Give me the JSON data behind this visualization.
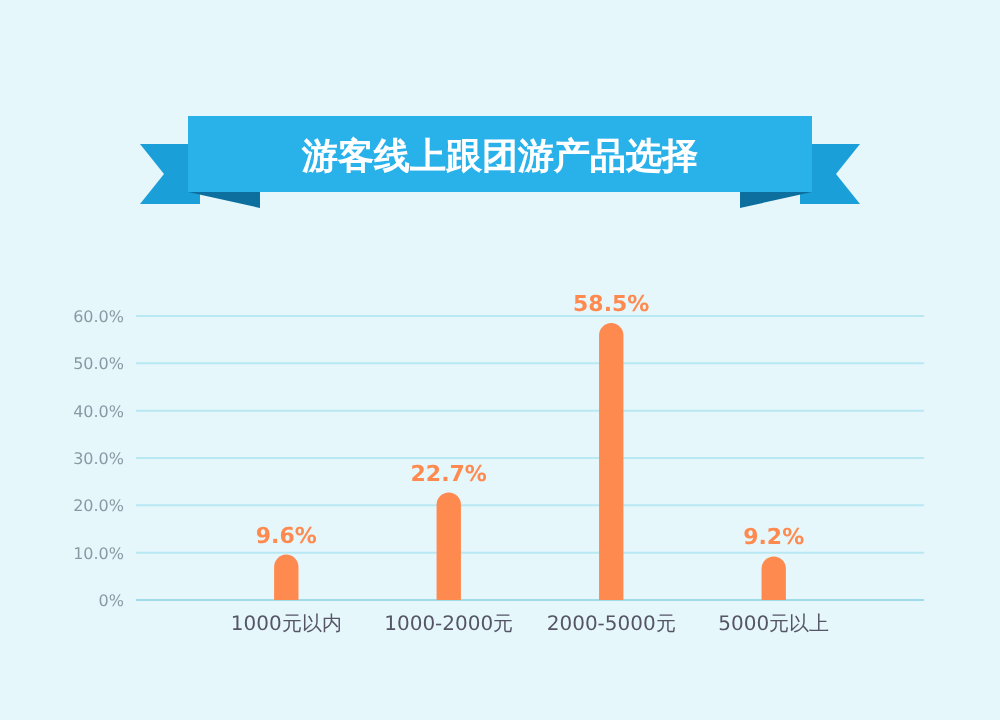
{
  "chart_data": {
    "type": "bar",
    "title": "游客线上跟团游产品选择",
    "categories": [
      "1000元以内",
      "1000-2000元",
      "2000-5000元",
      "5000元以上"
    ],
    "values": [
      9.6,
      22.7,
      58.5,
      9.2
    ],
    "color": "#ff8a50",
    "value_labels": [
      "9.6%",
      "22.7%",
      "58.5%",
      "9.2%"
    ],
    "ylim": [
      0,
      60
    ],
    "yticks": [
      {
        "value": 0,
        "label": "0%"
      },
      {
        "value": 10,
        "label": "10.0%"
      },
      {
        "value": 20,
        "label": "20.0%"
      },
      {
        "value": 30,
        "label": "30.0%"
      },
      {
        "value": 40,
        "label": "40.0%"
      },
      {
        "value": 50,
        "label": "50.0%"
      },
      {
        "value": 60,
        "label": "60.0%"
      }
    ],
    "grid": "y"
  }
}
